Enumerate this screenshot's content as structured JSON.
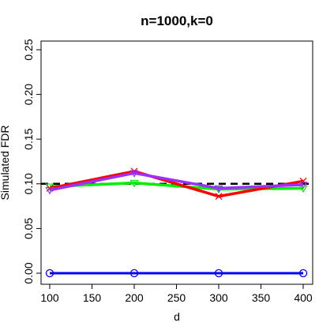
{
  "chart_data": {
    "type": "line",
    "title": "n=1000,k=0",
    "xlabel": "d",
    "ylabel": "Simulated FDR",
    "x": [
      100,
      200,
      300,
      400
    ],
    "xlim": [
      100,
      400
    ],
    "ylim": [
      0,
      0.25
    ],
    "x_ticks": [
      "100",
      "150",
      "200",
      "250",
      "300",
      "350",
      "400"
    ],
    "y_ticks": [
      "0.00",
      "0.05",
      "0.10",
      "0.15",
      "0.20",
      "0.25"
    ],
    "x_tick_values": [
      100,
      150,
      200,
      250,
      300,
      350,
      400
    ],
    "y_tick_values": [
      0,
      0.05,
      0.1,
      0.15,
      0.2,
      0.25
    ],
    "reference_line": {
      "y": 0.1,
      "style": "dashed",
      "color": "#000000"
    },
    "grid": false,
    "series": [
      {
        "color": "#0000ff",
        "marker": "circle",
        "values": [
          0.0,
          0.0,
          0.0,
          0.0
        ]
      },
      {
        "color": "#00ee00",
        "marker": "triangle-down",
        "values": [
          0.097,
          0.101,
          0.094,
          0.095
        ]
      },
      {
        "color": "#ff0000",
        "marker": "x",
        "values": [
          0.095,
          0.114,
          0.086,
          0.103
        ]
      },
      {
        "color": "#9b30ff",
        "marker": "triangle-down",
        "values": [
          0.093,
          0.112,
          0.095,
          0.099
        ]
      }
    ]
  }
}
